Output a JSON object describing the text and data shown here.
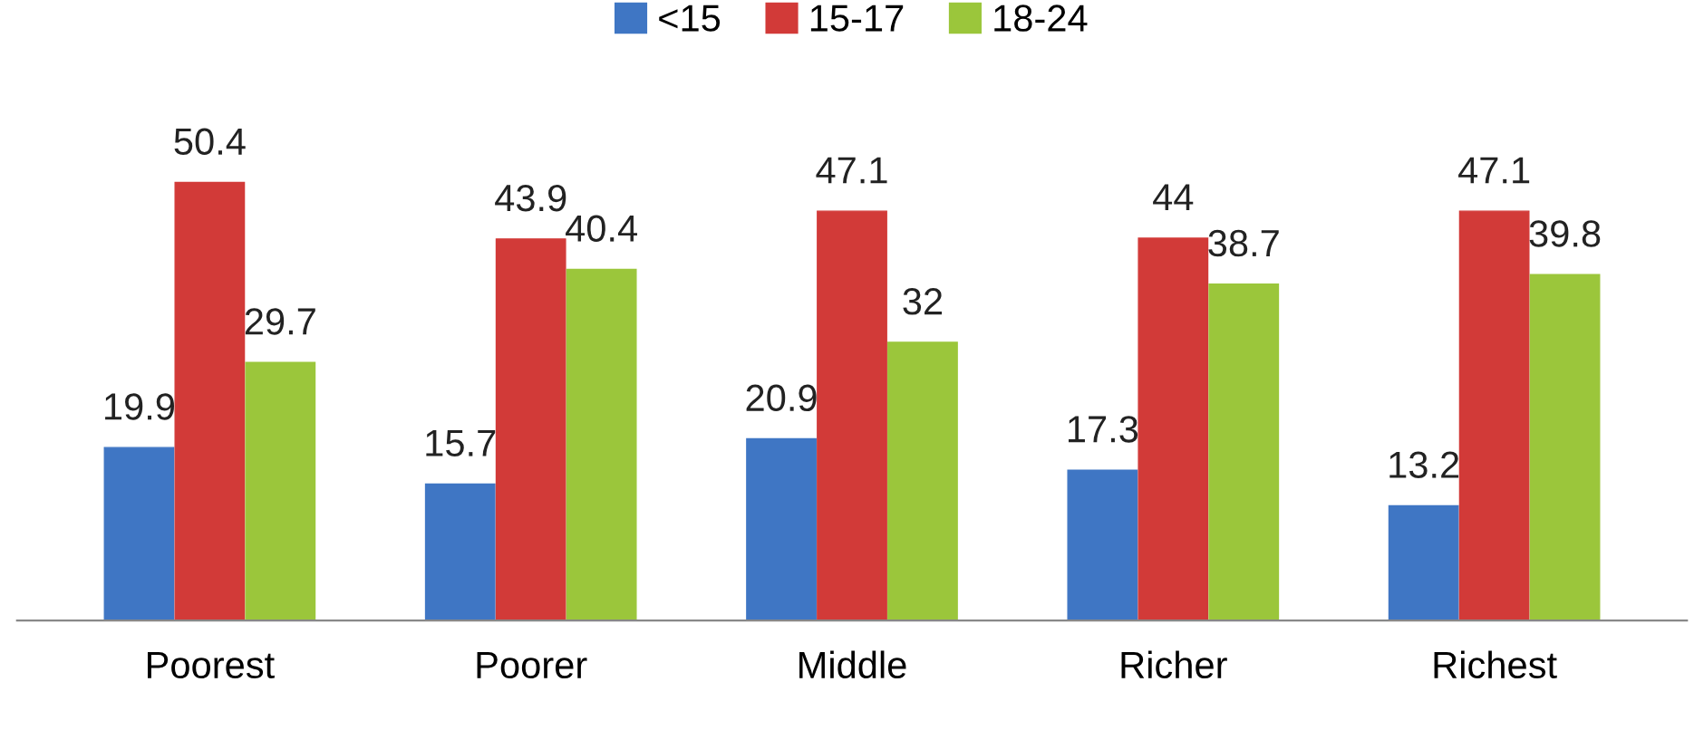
{
  "chart_data": {
    "type": "bar",
    "categories": [
      "Poorest",
      "Poorer",
      "Middle",
      "Richer",
      "Richest"
    ],
    "series": [
      {
        "name": "<15",
        "color": "#3f76c4",
        "values": [
          19.9,
          15.7,
          20.9,
          17.3,
          13.2
        ]
      },
      {
        "name": "15-17",
        "color": "#d23a38",
        "values": [
          50.4,
          43.9,
          47.1,
          44,
          47.1
        ]
      },
      {
        "name": "18-24",
        "color": "#9bc63b",
        "values": [
          29.7,
          40.4,
          32,
          38.7,
          39.8
        ]
      }
    ],
    "data_labels": true,
    "legend": "top",
    "grid": false
  }
}
